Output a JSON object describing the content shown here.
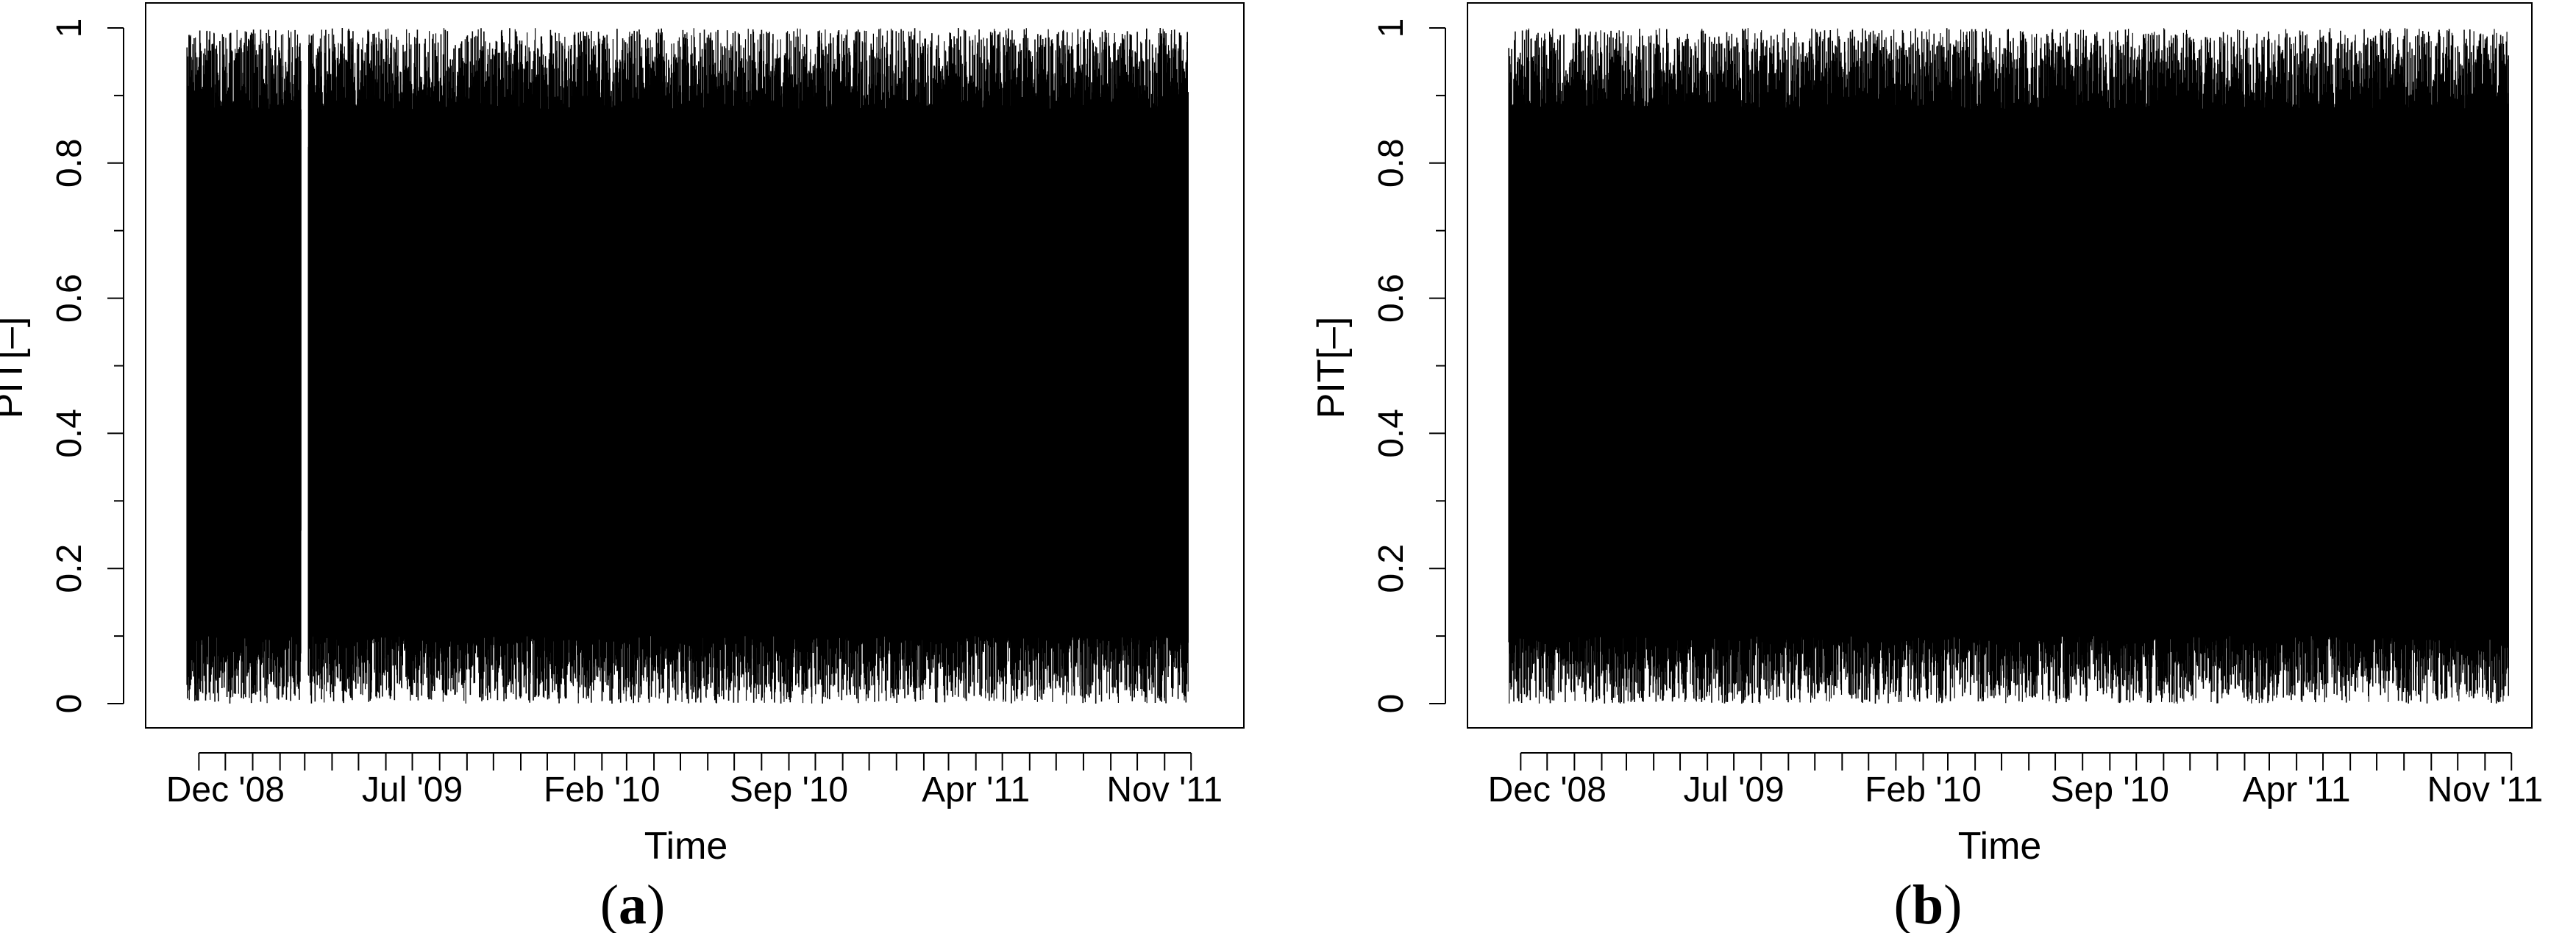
{
  "chart_data": [
    {
      "panel": "a",
      "type": "line",
      "xlabel": "Time",
      "ylabel": "PIT[–]",
      "x_range": [
        "2008-10-15",
        "2011-12-15"
      ],
      "ylim": [
        0,
        1
      ],
      "x_ticks": [
        "Dec '08",
        "Jul '09",
        "Feb '10",
        "Sep '10",
        "Apr '11",
        "Nov '11"
      ],
      "y_ticks": [
        "0",
        "0.2",
        "0.4",
        "0.6",
        "0.8",
        "1"
      ],
      "grid": false,
      "series": [
        {
          "color": "#000000",
          "description_values": "dense hourly PIT series spanning full range 0 to 1, gap around Mar '09",
          "y_min": 0,
          "y_max": 1,
          "gaps": [
            [
              "2009-02-25",
              "2009-03-05"
            ]
          ]
        }
      ]
    },
    {
      "panel": "b",
      "type": "line",
      "xlabel": "Time",
      "ylabel": "PIT[–]",
      "x_range": [
        "2008-10-15",
        "2011-12-15"
      ],
      "ylim": [
        0,
        1
      ],
      "x_ticks": [
        "Dec '08",
        "Jul '09",
        "Feb '10",
        "Sep '10",
        "Apr '11",
        "Nov '11"
      ],
      "y_ticks": [
        "0",
        "0.2",
        "0.4",
        "0.6",
        "0.8",
        "1"
      ],
      "grid": false,
      "series": [
        {
          "color": "#000000",
          "y_min": 0,
          "y_max": 1,
          "gaps": []
        }
      ]
    }
  ],
  "labels": {
    "a_open": "(",
    "a_letter": "a",
    "a_close": ")",
    "b_open": "(",
    "b_letter": "b",
    "b_close": ")"
  }
}
